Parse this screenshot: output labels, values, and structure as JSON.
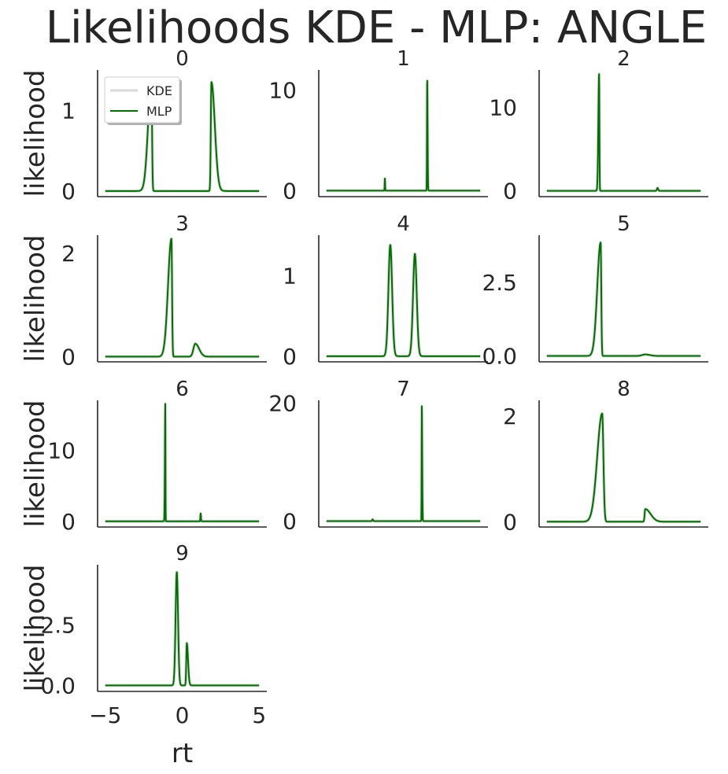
{
  "title": "Likelihoods KDE - MLP: ANGLE",
  "legend": {
    "entries": [
      {
        "label": "KDE",
        "color": "#d9d9d9"
      },
      {
        "label": "MLP",
        "color": "#007000"
      }
    ],
    "placement": "upper-left of panel 0"
  },
  "colors": {
    "kde": "#d9d9d9",
    "mlp": "#007000",
    "axis": "#262626"
  },
  "chart_data": {
    "type": "line",
    "layout": "grid 4x3, 10 panels",
    "x_label": "rt",
    "y_label": "likelihood",
    "xlim": [
      -5.5,
      5.5
    ],
    "x_ticks": [
      "−5",
      "0",
      "5"
    ],
    "grid": false,
    "panels": [
      {
        "title": "0",
        "ylim": [
          -0.07,
          1.5
        ],
        "yticks": [
          {
            "v": 0,
            "label": "0"
          },
          {
            "v": 1,
            "label": "1"
          }
        ],
        "peaks": [
          {
            "mu": -2.0,
            "amp": 1.35,
            "sl": 0.22,
            "sr": 0.04
          },
          {
            "mu": 1.9,
            "amp": 1.35,
            "sl": 0.04,
            "sr": 0.22
          }
        ]
      },
      {
        "title": "1",
        "ylim": [
          -0.6,
          12.0
        ],
        "yticks": [
          {
            "v": 0,
            "label": "0"
          },
          {
            "v": 10,
            "label": "10"
          }
        ],
        "peaks": [
          {
            "mu": -1.2,
            "amp": 1.2,
            "sl": 0.015,
            "sr": 0.015
          },
          {
            "mu": 1.55,
            "amp": 11.2,
            "sl": 0.015,
            "sr": 0.025
          }
        ]
      },
      {
        "title": "2",
        "ylim": [
          -0.7,
          14.5
        ],
        "yticks": [
          {
            "v": 0,
            "label": "0"
          },
          {
            "v": 10,
            "label": "10"
          }
        ],
        "peaks": [
          {
            "mu": -1.6,
            "amp": 14.0,
            "sl": 0.05,
            "sr": 0.02
          },
          {
            "mu": 2.2,
            "amp": 0.35,
            "sl": 0.04,
            "sr": 0.04
          }
        ]
      },
      {
        "title": "3",
        "ylim": [
          -0.1,
          2.35
        ],
        "yticks": [
          {
            "v": 0,
            "label": "0"
          },
          {
            "v": 2,
            "label": "2"
          }
        ],
        "peaks": [
          {
            "mu": -0.7,
            "amp": 2.28,
            "sl": 0.22,
            "sr": 0.04
          },
          {
            "mu": 0.85,
            "amp": 0.25,
            "sl": 0.12,
            "sr": 0.25
          }
        ]
      },
      {
        "title": "4",
        "ylim": [
          -0.07,
          1.5
        ],
        "yticks": [
          {
            "v": 0,
            "label": "0"
          },
          {
            "v": 1,
            "label": "1"
          }
        ],
        "peaks": [
          {
            "mu": -0.85,
            "amp": 1.38,
            "sl": 0.12,
            "sr": 0.12
          },
          {
            "mu": 0.75,
            "amp": 1.27,
            "sl": 0.12,
            "sr": 0.12
          }
        ]
      },
      {
        "title": "5",
        "ylim": [
          -0.2,
          4.1
        ],
        "yticks": [
          {
            "v": 0,
            "label": "0.0"
          },
          {
            "v": 2.5,
            "label": "2.5"
          }
        ],
        "peaks": [
          {
            "mu": -1.5,
            "amp": 3.85,
            "sl": 0.22,
            "sr": 0.04
          },
          {
            "mu": 1.4,
            "amp": 0.05,
            "sl": 0.2,
            "sr": 0.3
          }
        ]
      },
      {
        "title": "6",
        "ylim": [
          -0.8,
          17.0
        ],
        "yticks": [
          {
            "v": 0,
            "label": "0"
          },
          {
            "v": 10,
            "label": "10"
          }
        ],
        "peaks": [
          {
            "mu": -1.1,
            "amp": 16.5,
            "sl": 0.025,
            "sr": 0.012
          },
          {
            "mu": 1.2,
            "amp": 1.1,
            "sl": 0.02,
            "sr": 0.02
          }
        ]
      },
      {
        "title": "7",
        "ylim": [
          -1.0,
          20.5
        ],
        "yticks": [
          {
            "v": 0,
            "label": "0"
          },
          {
            "v": 20,
            "label": "20"
          }
        ],
        "peaks": [
          {
            "mu": -2.0,
            "amp": 0.3,
            "sl": 0.03,
            "sr": 0.03
          },
          {
            "mu": 1.2,
            "amp": 19.5,
            "sl": 0.012,
            "sr": 0.025
          }
        ]
      },
      {
        "title": "8",
        "ylim": [
          -0.1,
          2.3
        ],
        "yticks": [
          {
            "v": 0,
            "label": "0"
          },
          {
            "v": 2,
            "label": "2"
          }
        ],
        "peaks": [
          {
            "mu": -1.4,
            "amp": 2.05,
            "sl": 0.32,
            "sr": 0.08
          },
          {
            "mu": 1.4,
            "amp": 0.24,
            "sl": 0.04,
            "sr": 0.35
          }
        ]
      },
      {
        "title": "9",
        "ylim": [
          -0.25,
          5.0
        ],
        "yticks": [
          {
            "v": 0,
            "label": "0.0"
          },
          {
            "v": 2.5,
            "label": "2.5"
          }
        ],
        "peaks": [
          {
            "mu": -0.35,
            "amp": 4.7,
            "sl": 0.08,
            "sr": 0.08
          },
          {
            "mu": 0.3,
            "amp": 1.75,
            "sl": 0.035,
            "sr": 0.08
          }
        ]
      }
    ]
  }
}
